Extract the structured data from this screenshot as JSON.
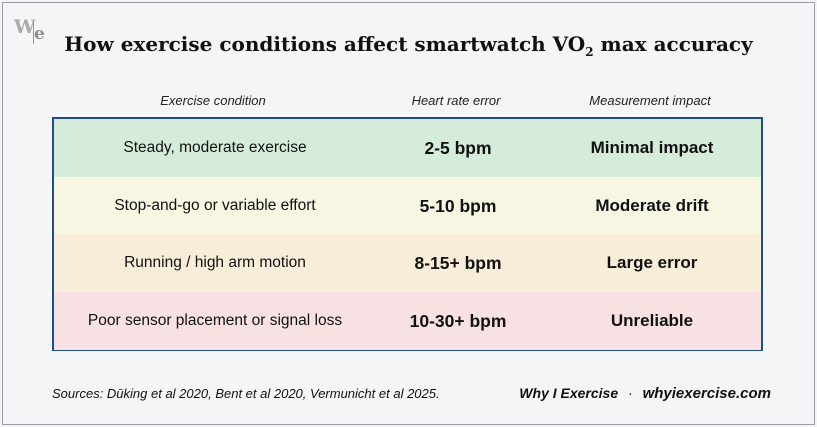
{
  "logo_text": "We",
  "title": {
    "main": "How exercise conditions affect smartwatch VO",
    "sub": "2",
    "tail": " max accuracy"
  },
  "chart_data": {
    "type": "table",
    "columns": [
      "Exercise condition",
      "Heart rate error",
      "Measurement impact"
    ],
    "rows": [
      {
        "condition": "Steady, moderate exercise",
        "error": "2-5 bpm",
        "impact": "Minimal impact",
        "color": "#d6ecdb"
      },
      {
        "condition": "Stop-and-go or variable effort",
        "error": "5-10 bpm",
        "impact": "Moderate drift",
        "color": "#f6f6e3"
      },
      {
        "condition": "Running / high arm motion",
        "error": "8-15+ bpm",
        "impact": "Large error",
        "color": "#f7edd8"
      },
      {
        "condition": "Poor sensor placement or signal loss",
        "error": "10-30+ bpm",
        "impact": "Unreliable",
        "color": "#f8e1e3"
      }
    ]
  },
  "colors": {
    "border": "#1f4f86",
    "background": "#f4f5f7"
  },
  "footer": {
    "sources": "Sources: Dūking et al 2020, Bent et al 2020, Vermunicht et al 2025.",
    "brand": "Why I Exercise",
    "dot": "·",
    "url": "whyiexercise.com"
  }
}
